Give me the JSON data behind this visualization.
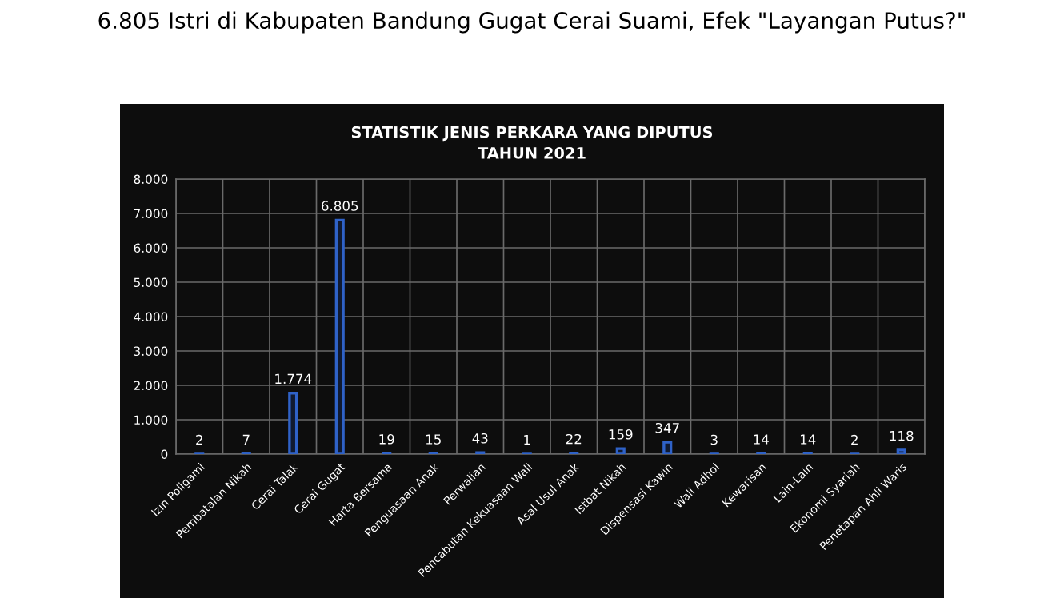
{
  "chart_data": {
    "type": "bar",
    "title": "STATISTIK JENIS PERKARA YANG DIPUTUS\nTAHUN 2021",
    "subtitle": "6.805 Istri di Kabupaten Bandung Gugat Cerai Suami, Efek \"Layangan Putus?\"",
    "categories": [
      "Izin Poligami",
      "Pembatalan Nikah",
      "Cerai Talak",
      "Cerai Gugat",
      "Harta Bersama",
      "Penguasaan Anak",
      "Perwalian",
      "Pencabutan Kekuasaan Wali",
      "Asal Usul Anak",
      "Istbat Nikah",
      "Dispensasi Kawin",
      "Wali Adhol",
      "Kewarisan",
      "Lain-Lain",
      "Ekonomi Syariah",
      "Penetapan Ahli Waris"
    ],
    "values": [
      2,
      7,
      1774,
      6805,
      19,
      15,
      43,
      1,
      22,
      159,
      347,
      3,
      14,
      14,
      2,
      118
    ],
    "value_labels": [
      "2",
      "7",
      "1.774",
      "6.805",
      "19",
      "15",
      "43",
      "1",
      "22",
      "159",
      "347",
      "3",
      "14",
      "14",
      "2",
      "118"
    ],
    "color": "#2f62c8",
    "ylim": [
      0,
      8000
    ],
    "yticks": [
      {
        "value": 0,
        "label": "0"
      },
      {
        "value": 1000,
        "label": "1.000"
      },
      {
        "value": 2000,
        "label": "2.000"
      },
      {
        "value": 3000,
        "label": "3.000"
      },
      {
        "value": 4000,
        "label": "4.000"
      },
      {
        "value": 5000,
        "label": "5.000"
      },
      {
        "value": 6000,
        "label": "6.000"
      },
      {
        "value": 7000,
        "label": "7.000"
      },
      {
        "value": 8000,
        "label": "8.000"
      }
    ],
    "grid": true
  }
}
